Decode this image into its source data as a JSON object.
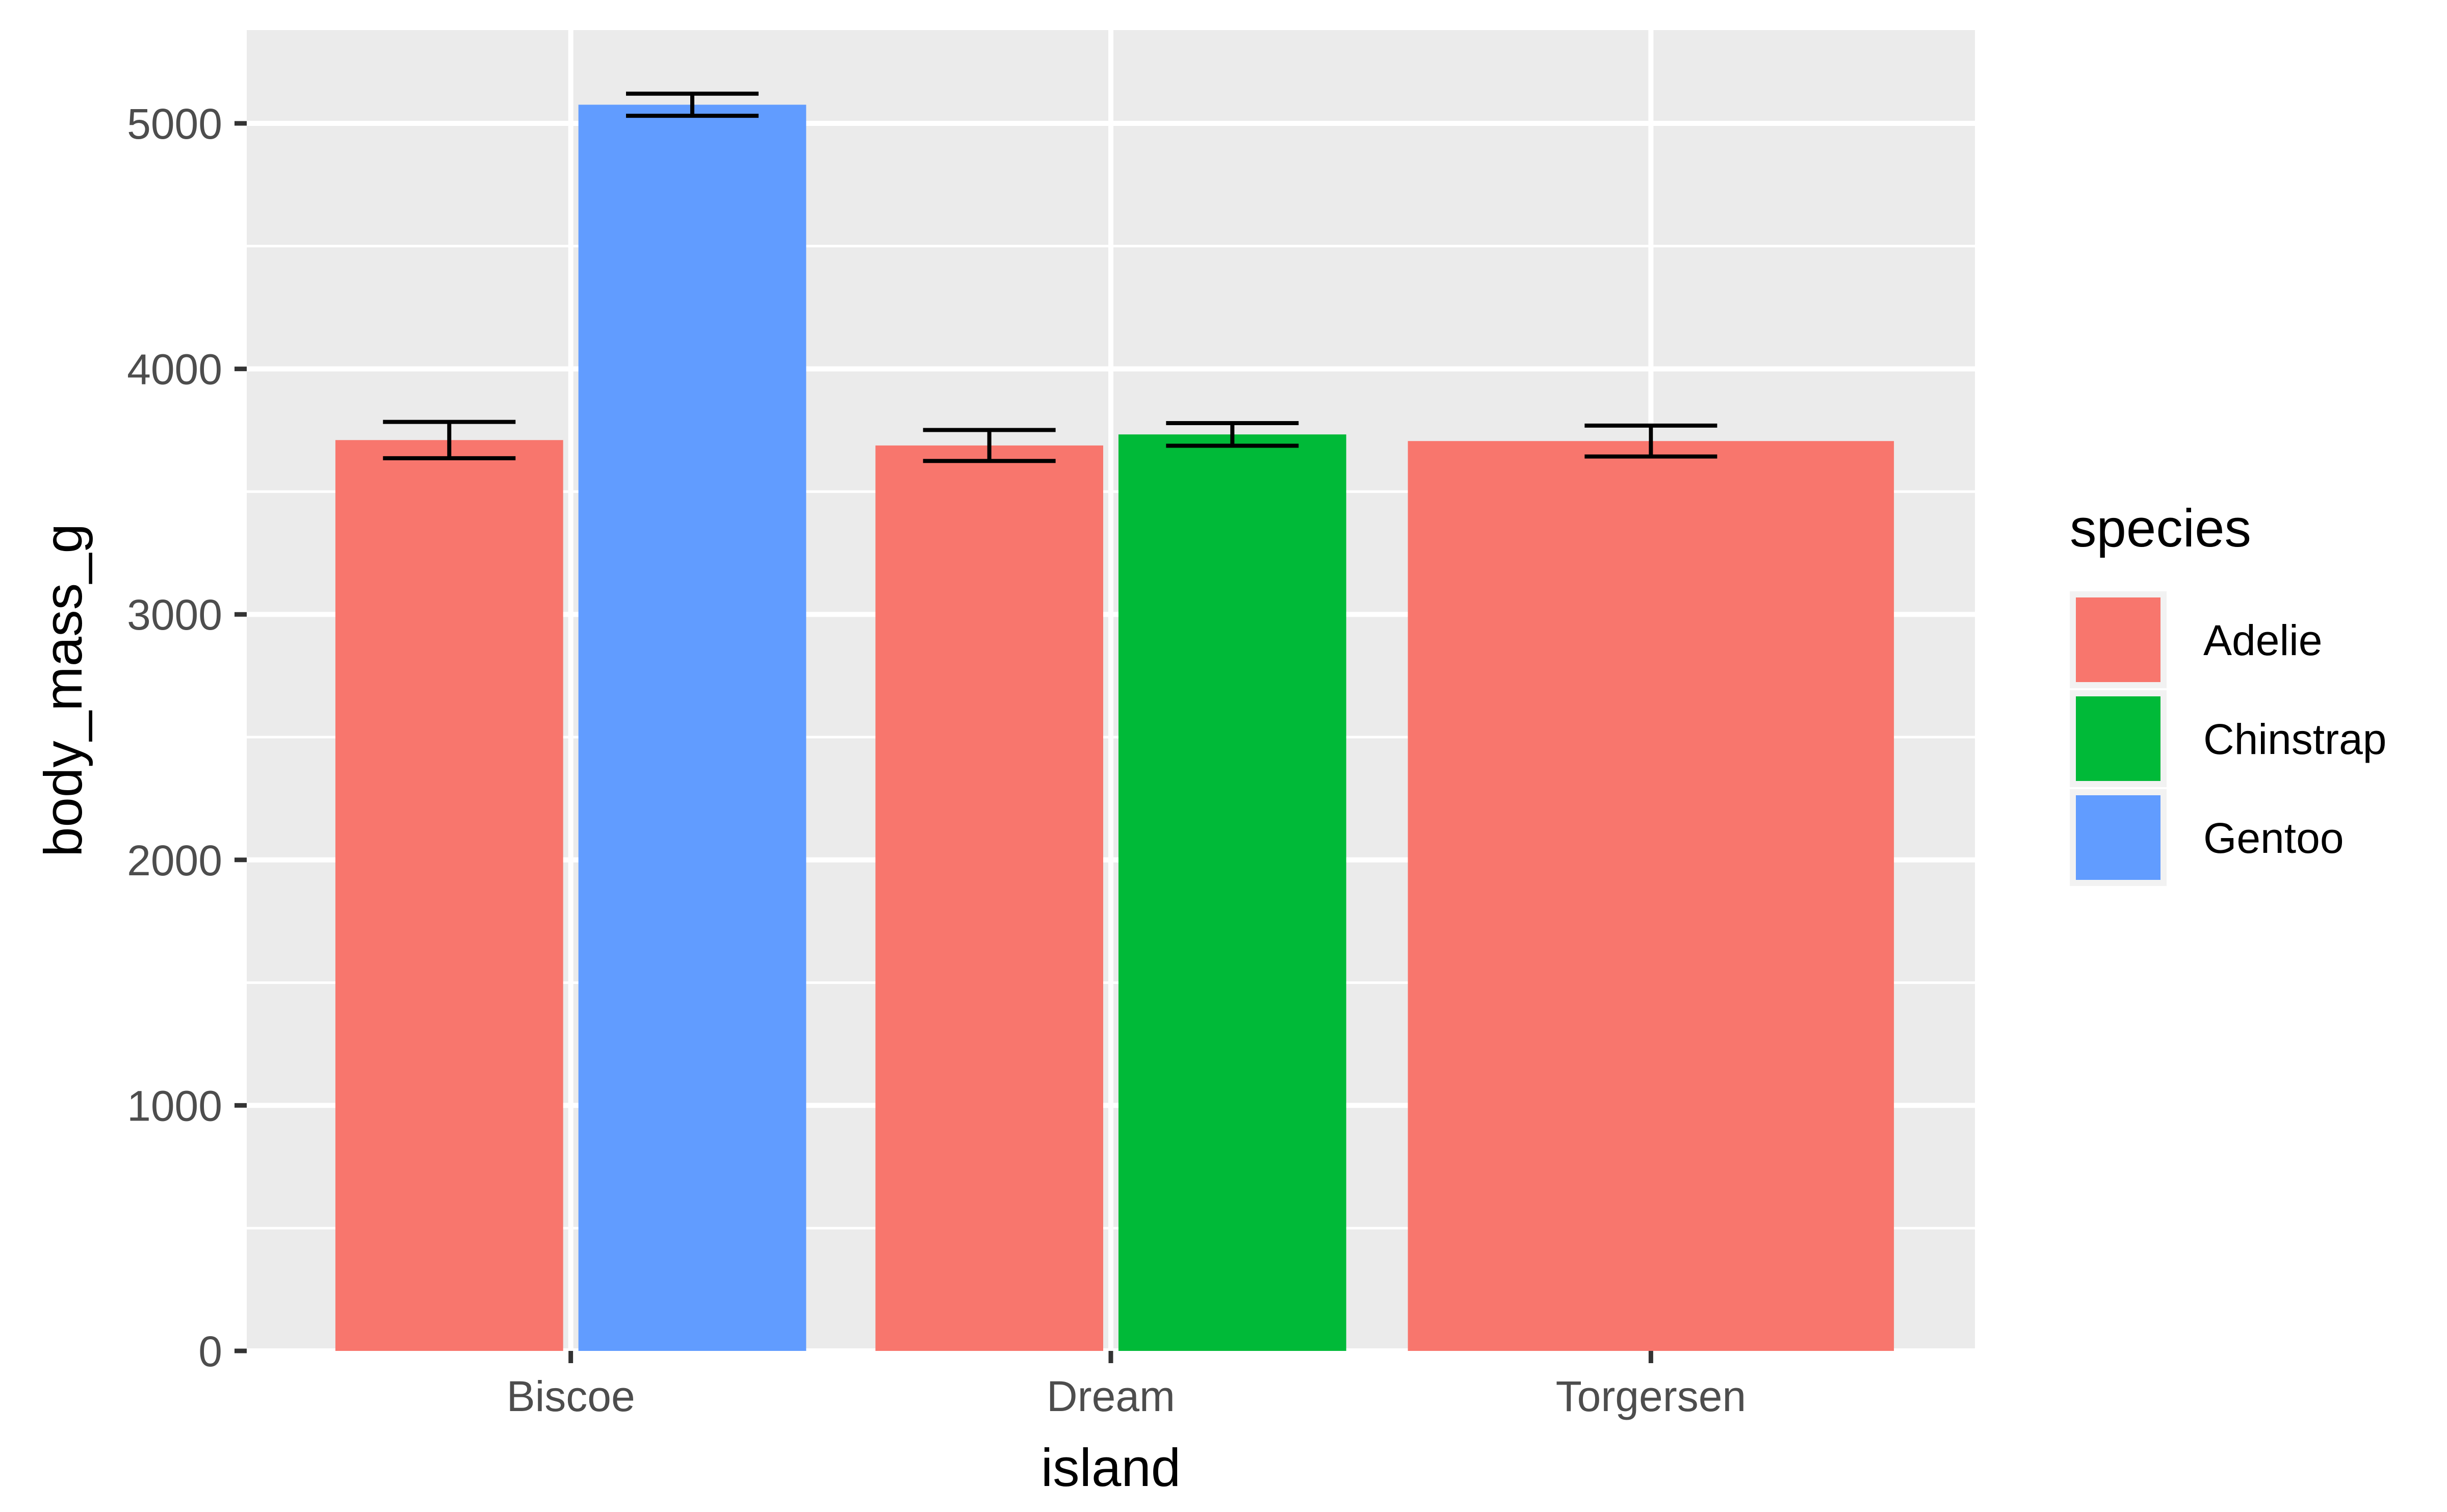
{
  "chart_data": {
    "type": "bar",
    "xlabel": "island",
    "ylabel": "body_mass_g",
    "categories": [
      "Biscoe",
      "Dream",
      "Torgersen"
    ],
    "ylim": [
      0,
      5380
    ],
    "yticks": [
      0,
      1000,
      2000,
      3000,
      4000,
      5000
    ],
    "grid": true,
    "legend": {
      "title": "species",
      "position": "right",
      "entries": [
        {
          "name": "Adelie",
          "color": "#F8766D"
        },
        {
          "name": "Chinstrap",
          "color": "#00BA38"
        },
        {
          "name": "Gentoo",
          "color": "#619CFF"
        }
      ]
    },
    "bars": [
      {
        "island": "Biscoe",
        "species": "Adelie",
        "value": 3710,
        "err_low": 3636,
        "err_high": 3784
      },
      {
        "island": "Biscoe",
        "species": "Gentoo",
        "value": 5076,
        "err_low": 5031,
        "err_high": 5121
      },
      {
        "island": "Dream",
        "species": "Adelie",
        "value": 3688,
        "err_low": 3625,
        "err_high": 3751
      },
      {
        "island": "Dream",
        "species": "Chinstrap",
        "value": 3733,
        "err_low": 3687,
        "err_high": 3779
      },
      {
        "island": "Torgersen",
        "species": "Adelie",
        "value": 3706,
        "err_low": 3643,
        "err_high": 3769
      }
    ]
  }
}
